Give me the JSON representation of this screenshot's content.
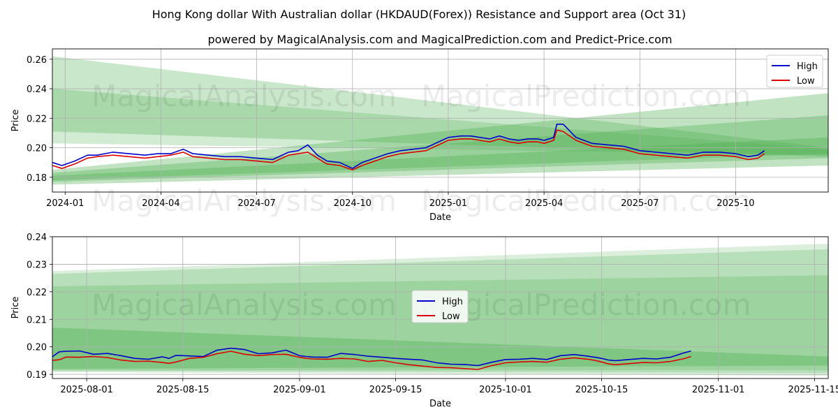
{
  "title": "Hong Kong dollar With Australian dollar (HKDAUD(Forex)) Resistance and Support area (Oct 31)",
  "subtitle": "powered by MagicalAnalysis.com and MagicalPrediction.com and Predict-Price.com",
  "watermarks": [
    "MagicalAnalysis.com",
    "MagicalPrediction.com"
  ],
  "colors": {
    "high": "#0000cc",
    "low": "#dd0000",
    "band": "#4caf50",
    "grid": "#b0b0b0"
  },
  "chart_data": [
    {
      "type": "line",
      "name": "full-history",
      "xlabel": "Date",
      "ylabel": "Price",
      "ylim": [
        0.17,
        0.267
      ],
      "yticks": [
        0.18,
        0.2,
        0.22,
        0.24,
        0.26
      ],
      "ytick_labels": [
        "0.18",
        "0.20",
        "0.22",
        "0.24",
        "0.26"
      ],
      "xlim": [
        -0.4,
        23.9
      ],
      "xticks": [
        0,
        3,
        6,
        9,
        12,
        15,
        18,
        21
      ],
      "xtick_labels": [
        "2024-01",
        "2024-04",
        "2024-07",
        "2024-10",
        "2025-01",
        "2025-04",
        "2025-07",
        "2025-10"
      ],
      "grid": true,
      "legend": {
        "position": "top-right",
        "entries": [
          "High",
          "Low"
        ]
      },
      "x": [
        -0.4,
        -0.1,
        0.3,
        0.7,
        1.0,
        1.5,
        2.0,
        2.5,
        2.9,
        3.3,
        3.7,
        4.0,
        4.5,
        5.0,
        5.5,
        6.0,
        6.5,
        7.0,
        7.3,
        7.6,
        7.9,
        8.2,
        8.6,
        9.0,
        9.3,
        9.7,
        10.1,
        10.5,
        10.9,
        11.3,
        11.7,
        12.0,
        12.4,
        12.7,
        13.0,
        13.3,
        13.6,
        13.9,
        14.2,
        14.5,
        14.8,
        15.0,
        15.3,
        15.4,
        15.6,
        16.0,
        16.5,
        17.0,
        17.5,
        18.0,
        18.5,
        19.0,
        19.5,
        20.0,
        20.5,
        21.0,
        21.4,
        21.7,
        21.9
      ],
      "series": [
        {
          "name": "High",
          "values": [
            0.19,
            0.188,
            0.191,
            0.195,
            0.195,
            0.197,
            0.196,
            0.195,
            0.196,
            0.196,
            0.199,
            0.196,
            0.195,
            0.194,
            0.194,
            0.193,
            0.192,
            0.197,
            0.198,
            0.202,
            0.195,
            0.191,
            0.19,
            0.186,
            0.19,
            0.193,
            0.196,
            0.198,
            0.199,
            0.2,
            0.204,
            0.207,
            0.208,
            0.208,
            0.207,
            0.206,
            0.208,
            0.206,
            0.205,
            0.206,
            0.206,
            0.205,
            0.207,
            0.216,
            0.216,
            0.207,
            0.203,
            0.202,
            0.201,
            0.198,
            0.197,
            0.196,
            0.195,
            0.197,
            0.197,
            0.196,
            0.194,
            0.195,
            0.198
          ]
        },
        {
          "name": "Low",
          "values": [
            0.188,
            0.186,
            0.189,
            0.193,
            0.194,
            0.195,
            0.194,
            0.193,
            0.194,
            0.195,
            0.197,
            0.194,
            0.193,
            0.192,
            0.192,
            0.191,
            0.19,
            0.195,
            0.196,
            0.197,
            0.193,
            0.189,
            0.188,
            0.185,
            0.188,
            0.191,
            0.194,
            0.196,
            0.197,
            0.198,
            0.202,
            0.205,
            0.206,
            0.206,
            0.205,
            0.204,
            0.206,
            0.204,
            0.203,
            0.204,
            0.204,
            0.203,
            0.205,
            0.212,
            0.211,
            0.205,
            0.201,
            0.2,
            0.199,
            0.196,
            0.195,
            0.194,
            0.193,
            0.195,
            0.195,
            0.194,
            0.192,
            0.193,
            0.196
          ]
        }
      ],
      "bands": [
        {
          "x0": -0.4,
          "x1": 23.9,
          "top0": 0.262,
          "bot0": 0.211,
          "top1": 0.2,
          "bot1": 0.194,
          "opacity": 0.3
        },
        {
          "x0": -0.4,
          "x1": 23.9,
          "top0": 0.24,
          "bot0": 0.203,
          "top1": 0.199,
          "bot1": 0.195,
          "opacity": 0.25
        },
        {
          "x0": -0.4,
          "x1": 23.9,
          "top0": 0.185,
          "bot0": 0.175,
          "top1": 0.237,
          "bot1": 0.188,
          "opacity": 0.35
        },
        {
          "x0": -0.4,
          "x1": 23.9,
          "top0": 0.183,
          "bot0": 0.177,
          "top1": 0.222,
          "bot1": 0.193,
          "opacity": 0.35
        },
        {
          "x0": -0.4,
          "x1": 23.9,
          "top0": 0.181,
          "bot0": 0.178,
          "top1": 0.207,
          "bot1": 0.196,
          "opacity": 0.35
        }
      ]
    },
    {
      "type": "line",
      "name": "recent-detail",
      "xlabel": "Date",
      "ylabel": "Price",
      "ylim": [
        0.1885,
        0.24
      ],
      "yticks": [
        0.19,
        0.2,
        0.21,
        0.22,
        0.23,
        0.24
      ],
      "ytick_labels": [
        "0.19",
        "0.20",
        "0.21",
        "0.22",
        "0.23",
        "0.24"
      ],
      "xlim": [
        -4,
        109
      ],
      "xticks": [
        1,
        15,
        32,
        46,
        62,
        76,
        93,
        107
      ],
      "xtick_labels": [
        "2025-08-01",
        "2025-08-15",
        "2025-09-01",
        "2025-09-15",
        "2025-10-01",
        "2025-10-15",
        "2025-11-01",
        "2025-11-15"
      ],
      "grid": true,
      "legend": {
        "position": "center",
        "entries": [
          "High",
          "Low"
        ]
      },
      "x": [
        -4,
        -3,
        -2,
        0,
        2,
        4,
        6,
        8,
        10,
        12,
        13,
        14,
        16,
        18,
        20,
        22,
        24,
        26,
        28,
        30,
        32,
        33,
        34,
        36,
        38,
        40,
        42,
        44,
        46,
        48,
        50,
        52,
        54,
        56,
        58,
        60,
        62,
        64,
        66,
        68,
        70,
        72,
        74,
        75,
        76,
        77,
        78,
        80,
        82,
        84,
        86,
        88,
        89
      ],
      "series": [
        {
          "name": "High",
          "values": [
            0.1964,
            0.1982,
            0.1984,
            0.1985,
            0.1973,
            0.1976,
            0.1968,
            0.1958,
            0.1955,
            0.1964,
            0.1958,
            0.1969,
            0.1967,
            0.1965,
            0.1988,
            0.1995,
            0.199,
            0.1975,
            0.1978,
            0.1988,
            0.1968,
            0.1965,
            0.1963,
            0.1962,
            0.1976,
            0.1972,
            0.1966,
            0.1962,
            0.1958,
            0.1955,
            0.1952,
            0.1942,
            0.1937,
            0.1936,
            0.1932,
            0.1944,
            0.1954,
            0.1955,
            0.1958,
            0.1954,
            0.1968,
            0.1972,
            0.1966,
            0.1962,
            0.1958,
            0.1952,
            0.195,
            0.1954,
            0.1958,
            0.1956,
            0.1962,
            0.1978,
            0.1985
          ]
        },
        {
          "name": "Low",
          "values": [
            0.1951,
            0.1953,
            0.1963,
            0.1962,
            0.1965,
            0.1961,
            0.1952,
            0.1947,
            0.1948,
            0.1943,
            0.194,
            0.1945,
            0.1958,
            0.1962,
            0.1975,
            0.1984,
            0.1973,
            0.1968,
            0.1972,
            0.1973,
            0.1962,
            0.1958,
            0.1956,
            0.1955,
            0.1958,
            0.1956,
            0.1947,
            0.1951,
            0.1942,
            0.1935,
            0.193,
            0.1925,
            0.1924,
            0.1921,
            0.1918,
            0.1932,
            0.1942,
            0.1945,
            0.1947,
            0.1944,
            0.1955,
            0.196,
            0.1955,
            0.1951,
            0.1945,
            0.1938,
            0.1935,
            0.1939,
            0.1943,
            0.1942,
            0.1947,
            0.1957,
            0.1965
          ]
        }
      ],
      "bands": [
        {
          "x0": -4,
          "x1": 109,
          "top0": 0.2275,
          "bot0": 0.1908,
          "top1": 0.2375,
          "bot1": 0.1895,
          "opacity": 0.2
        },
        {
          "x0": -4,
          "x1": 109,
          "top0": 0.2265,
          "bot0": 0.1912,
          "top1": 0.2355,
          "bot1": 0.1905,
          "opacity": 0.25
        },
        {
          "x0": -4,
          "x1": 109,
          "top0": 0.222,
          "bot0": 0.1915,
          "top1": 0.226,
          "bot1": 0.1915,
          "opacity": 0.25
        },
        {
          "x0": -4,
          "x1": 109,
          "top0": 0.207,
          "bot0": 0.192,
          "top1": 0.1965,
          "bot1": 0.1932,
          "opacity": 0.35
        }
      ]
    }
  ]
}
